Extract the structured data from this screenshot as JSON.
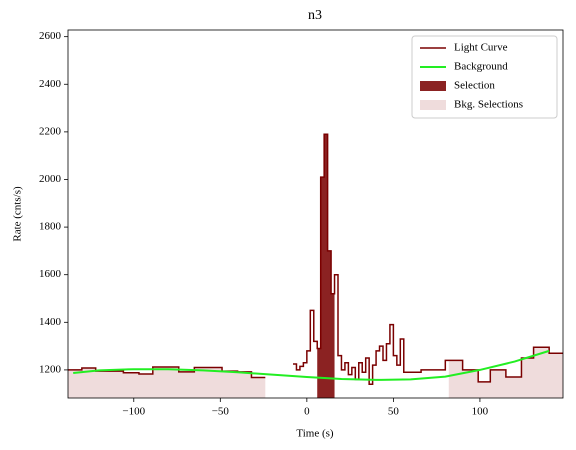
{
  "chart_data": {
    "type": "light_curve",
    "title": "n3",
    "x_label": "Time (s)",
    "y_label": "Rate (cnts/s)",
    "xlim": [
      -138,
      148
    ],
    "ylim": [
      1082,
      2628
    ],
    "xticks": [
      {
        "value": -100,
        "label": "−100"
      },
      {
        "value": -50,
        "label": "−50"
      },
      0,
      50,
      100
    ],
    "yticks": [
      1200,
      1400,
      1600,
      1800,
      2000,
      2200,
      2400,
      2600
    ],
    "legend": "upper right",
    "series": [
      {
        "name": "Light Curve",
        "color": "#7a0000",
        "style": "step",
        "x": [
          -138,
          -130,
          -122,
          -106,
          -97,
          -89,
          -74,
          -65,
          -49,
          -40,
          -32,
          -24,
          -8,
          -6,
          -4,
          -2,
          0,
          2,
          4,
          6,
          8,
          10,
          12,
          14,
          16,
          18,
          20,
          22,
          24,
          26,
          28,
          30,
          32,
          34,
          36,
          38,
          40,
          42,
          44,
          46,
          48,
          50,
          52,
          54,
          56,
          58,
          66,
          80,
          90,
          99,
          106,
          115,
          124,
          131,
          140,
          148
        ],
        "values": [
          1200,
          1208,
          1195,
          1188,
          1183,
          1212,
          1192,
          1210,
          1195,
          1192,
          1168,
          null,
          1225,
          1200,
          1215,
          1230,
          1280,
          1450,
          1320,
          1290,
          2010,
          2190,
          1700,
          1520,
          1600,
          1260,
          1200,
          1230,
          1180,
          1210,
          1160,
          1230,
          1190,
          1250,
          1140,
          1220,
          1280,
          1300,
          1240,
          1310,
          1390,
          1260,
          1220,
          1330,
          1190,
          1190,
          1200,
          1240,
          1200,
          1150,
          1200,
          1170,
          1250,
          1295,
          1270,
          null
        ]
      },
      {
        "name": "Background",
        "color": "#22ee22",
        "style": "line",
        "x": [
          -135,
          -120,
          -100,
          -80,
          -60,
          -40,
          -20,
          0,
          20,
          40,
          60,
          80,
          100,
          120,
          140
        ],
        "values": [
          1187,
          1198,
          1203,
          1203,
          1198,
          1190,
          1180,
          1170,
          1162,
          1158,
          1160,
          1172,
          1200,
          1235,
          1280
        ]
      }
    ],
    "selection": {
      "name": "Selection",
      "color": "#8b2222",
      "range": [
        6,
        16
      ]
    },
    "bkg_selections": {
      "name": "Bkg. Selections",
      "color": "#efdcdc",
      "ranges": [
        [
          -138,
          -24
        ],
        [
          82,
          148
        ]
      ]
    }
  }
}
